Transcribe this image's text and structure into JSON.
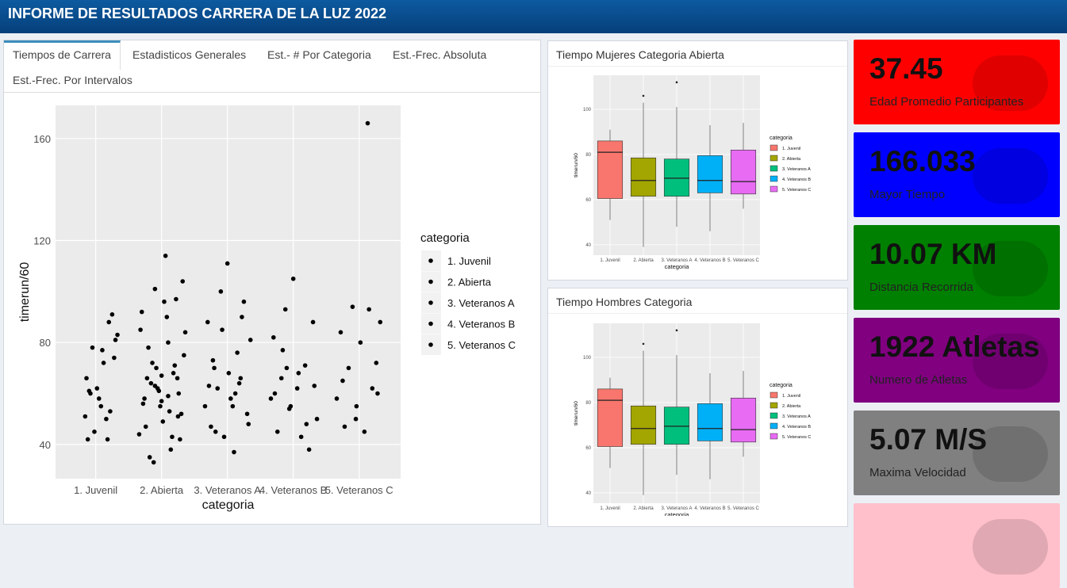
{
  "header": {
    "title": "INFORME DE RESULTADOS CARRERA DE LA LUZ 2022"
  },
  "tabs": [
    "Tiempos de Carrera",
    "Estadisticos Generales",
    "Est.- # Por Categoria",
    "Est.-Frec. Absoluta",
    "Est.-Frec. Por Intervalos"
  ],
  "cards": [
    {
      "value": "37.45",
      "label": "Edad Promedio Participantes",
      "color": "#ff0000"
    },
    {
      "value": "166.033",
      "label": "Mayor Tiempo",
      "color": "#0000ff"
    },
    {
      "value": "10.07 KM",
      "label": "Distancia Recorrida",
      "color": "#008000"
    },
    {
      "value": "1922 Atletas",
      "label": "Numero de Atletas",
      "color": "#800080"
    },
    {
      "value": "5.07 M/S",
      "label": "Maxima Velocidad",
      "color": "#808080"
    },
    {
      "color": "#ffc0cb"
    }
  ],
  "chart_data": [
    {
      "type": "scatter",
      "xlabel": "categoria",
      "ylabel": "timerun/60",
      "legend_title": "categoria",
      "grid": true,
      "xlim": [
        0.39,
        5.63
      ],
      "ylim": [
        26.6,
        173
      ],
      "yticks": [
        40,
        80,
        120,
        160
      ],
      "xticks": [
        {
          "value": 1,
          "label": "1. Juvenil"
        },
        {
          "value": 2,
          "label": "2. Abierta"
        },
        {
          "value": 3,
          "label": "3. Veteranos A"
        },
        {
          "value": 4,
          "label": "4. Veteranos B"
        },
        {
          "value": 5,
          "label": "5. Veteranos C"
        }
      ],
      "series": [
        {
          "name": "1. Juvenil",
          "color": "#000000",
          "x": [
            0.84,
            0.88,
            0.9,
            0.95,
            0.98,
            1.02,
            1.05,
            1.1,
            1.12,
            1.16,
            1.2,
            1.25,
            1.3,
            1.33,
            0.92,
            1.08,
            1.18,
            1.28,
            0.86,
            1.22
          ],
          "y": [
            51,
            42,
            61,
            78,
            45,
            62,
            58,
            77,
            72,
            50,
            88,
            91,
            81,
            83,
            60,
            55,
            42,
            74,
            66,
            53
          ]
        },
        {
          "name": "2. Abierta",
          "color": "#000000",
          "x": [
            1.66,
            1.7,
            1.74,
            1.78,
            1.82,
            1.86,
            1.9,
            1.94,
            1.98,
            2.02,
            2.06,
            2.1,
            2.14,
            2.18,
            2.22,
            2.26,
            2.3,
            2.34,
            1.68,
            1.76,
            1.84,
            1.92,
            2.0,
            2.08,
            2.16,
            2.24,
            2.32,
            1.72,
            1.8,
            1.88,
            1.96,
            2.04,
            2.12,
            2.2,
            2.28,
            2.36,
            1.9,
            2.1,
            2.0,
            2.25
          ],
          "y": [
            44,
            92,
            58,
            66,
            35,
            72,
            101,
            62,
            55,
            49,
            114,
            80,
            38,
            68,
            97,
            60,
            52,
            75,
            85,
            47,
            64,
            70,
            57,
            90,
            43,
            66,
            104,
            56,
            78,
            33,
            61,
            96,
            53,
            71,
            42,
            84,
            63,
            59,
            67,
            51
          ]
        },
        {
          "name": "3. Veteranos A",
          "color": "#000000",
          "x": [
            2.66,
            2.7,
            2.75,
            2.8,
            2.85,
            2.9,
            2.95,
            3.0,
            3.05,
            3.1,
            3.15,
            3.2,
            3.25,
            3.3,
            3.35,
            2.72,
            2.82,
            2.92,
            3.02,
            3.12,
            3.22,
            3.32,
            2.78,
            3.08,
            3.18
          ],
          "y": [
            55,
            88,
            47,
            70,
            62,
            100,
            43,
            111,
            58,
            37,
            76,
            66,
            96,
            52,
            81,
            63,
            45,
            85,
            68,
            60,
            90,
            48,
            73,
            55,
            64
          ]
        },
        {
          "name": "4. Veteranos B",
          "color": "#000000",
          "x": [
            3.66,
            3.7,
            3.76,
            3.82,
            3.88,
            3.94,
            4.0,
            4.06,
            4.12,
            4.18,
            4.24,
            4.3,
            4.36,
            3.72,
            3.84,
            3.96,
            4.08,
            4.2,
            4.32,
            3.9
          ],
          "y": [
            58,
            82,
            45,
            66,
            93,
            54,
            105,
            62,
            43,
            71,
            38,
            88,
            50,
            60,
            77,
            55,
            68,
            48,
            63,
            70
          ]
        },
        {
          "name": "5. Veteranos C",
          "color": "#000000",
          "x": [
            4.66,
            4.72,
            4.78,
            4.84,
            4.9,
            4.96,
            5.02,
            5.08,
            5.13,
            5.2,
            5.26,
            5.32,
            4.75,
            4.95,
            5.15,
            5.28
          ],
          "y": [
            58,
            84,
            47,
            70,
            94,
            55,
            80,
            45,
            166,
            62,
            72,
            88,
            65,
            50,
            93,
            60
          ]
        }
      ]
    },
    {
      "type": "box",
      "title": "Tiempo Mujeres Categoria Abierta",
      "xlabel": "categoria",
      "ylabel": "timerun/60",
      "legend_title": "categoria",
      "grid": true,
      "ylim": [
        35.4,
        115.1
      ],
      "yticks": [
        40,
        60,
        80,
        100
      ],
      "categories": [
        "1. Juvenil",
        "2. Abierta",
        "3. Veteranos A",
        "4. Veteranos B",
        "5. Veteranos C"
      ],
      "series": [
        {
          "name": "1. Juvenil",
          "color": "#F8766D",
          "min": 51,
          "q1": 60.5,
          "median": 81,
          "q3": 86,
          "max": 91,
          "outliers": []
        },
        {
          "name": "2. Abierta",
          "color": "#A3A500",
          "min": 39,
          "q1": 61.5,
          "median": 68.5,
          "q3": 78.5,
          "max": 103,
          "outliers": [
            106
          ]
        },
        {
          "name": "3. Veteranos A",
          "color": "#00BF7D",
          "min": 48,
          "q1": 61.5,
          "median": 69.5,
          "q3": 78,
          "max": 101,
          "outliers": [
            112
          ]
        },
        {
          "name": "4. Veteranos B",
          "color": "#00B0F6",
          "min": 46,
          "q1": 63,
          "median": 68.5,
          "q3": 79.5,
          "max": 93,
          "outliers": []
        },
        {
          "name": "5. Veteranos C",
          "color": "#E76BF3",
          "min": 56,
          "q1": 62.5,
          "median": 68,
          "q3": 82,
          "max": 94,
          "outliers": []
        }
      ]
    },
    {
      "type": "box",
      "title": "Tiempo Hombres Categoria",
      "xlabel": "categoria",
      "ylabel": "timerun/60",
      "legend_title": "categoria",
      "grid": true,
      "ylim": [
        35.4,
        115.1
      ],
      "yticks": [
        40,
        60,
        80,
        100
      ],
      "categories": [
        "1. Juvenil",
        "2. Abierta",
        "3. Veteranos A",
        "4. Veteranos B",
        "5. Veteranos C"
      ],
      "series": [
        {
          "name": "1. Juvenil",
          "color": "#F8766D",
          "min": 51,
          "q1": 60.5,
          "median": 81,
          "q3": 86,
          "max": 91,
          "outliers": []
        },
        {
          "name": "2. Abierta",
          "color": "#A3A500",
          "min": 39,
          "q1": 61.5,
          "median": 68.5,
          "q3": 78.5,
          "max": 103,
          "outliers": [
            106
          ]
        },
        {
          "name": "3. Veteranos A",
          "color": "#00BF7D",
          "min": 48,
          "q1": 61.5,
          "median": 69.5,
          "q3": 78,
          "max": 101,
          "outliers": [
            112
          ]
        },
        {
          "name": "4. Veteranos B",
          "color": "#00B0F6",
          "min": 46,
          "q1": 63,
          "median": 68.5,
          "q3": 79.5,
          "max": 93,
          "outliers": []
        },
        {
          "name": "5. Veteranos C",
          "color": "#E76BF3",
          "min": 56,
          "q1": 62.5,
          "median": 68,
          "q3": 82,
          "max": 94,
          "outliers": []
        }
      ]
    }
  ]
}
